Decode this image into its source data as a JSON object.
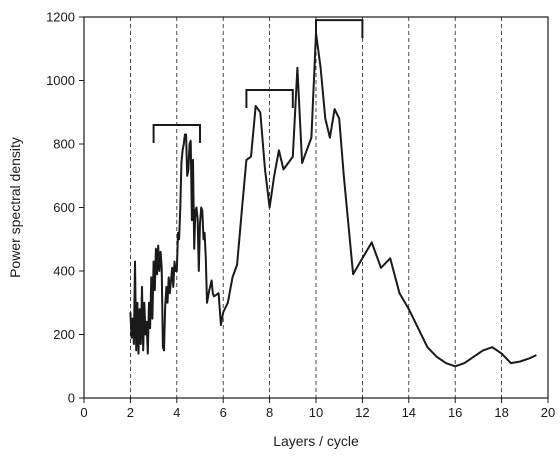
{
  "chart_data": {
    "type": "line",
    "title": "",
    "xlabel": "Layers / cycle",
    "ylabel": "Power spectral density",
    "xlim": [
      0,
      20
    ],
    "ylim": [
      0,
      1200
    ],
    "xticks": [
      0,
      2,
      4,
      6,
      8,
      10,
      12,
      14,
      16,
      18,
      20
    ],
    "yticks": [
      0,
      200,
      400,
      600,
      800,
      1000,
      1200
    ],
    "grid": "vertical dashed lines at even x ticks 2-18",
    "legend": "none",
    "line_color": "#1a1a1a",
    "series": [
      {
        "points": [
          [
            2.0,
            270
          ],
          [
            2.05,
            190
          ],
          [
            2.1,
            250
          ],
          [
            2.15,
            170
          ],
          [
            2.2,
            430
          ],
          [
            2.25,
            150
          ],
          [
            2.3,
            300
          ],
          [
            2.35,
            140
          ],
          [
            2.4,
            280
          ],
          [
            2.45,
            170
          ],
          [
            2.5,
            350
          ],
          [
            2.55,
            150
          ],
          [
            2.6,
            300
          ],
          [
            2.65,
            200
          ],
          [
            2.7,
            240
          ],
          [
            2.75,
            140
          ],
          [
            2.8,
            300
          ],
          [
            2.85,
            220
          ],
          [
            2.9,
            380
          ],
          [
            2.95,
            250
          ],
          [
            3.0,
            430
          ],
          [
            3.05,
            340
          ],
          [
            3.1,
            470
          ],
          [
            3.15,
            390
          ],
          [
            3.2,
            480
          ],
          [
            3.25,
            400
          ],
          [
            3.3,
            460
          ],
          [
            3.35,
            410
          ],
          [
            3.4,
            160
          ],
          [
            3.45,
            150
          ],
          [
            3.5,
            290
          ],
          [
            3.55,
            350
          ],
          [
            3.6,
            300
          ],
          [
            3.65,
            380
          ],
          [
            3.7,
            330
          ],
          [
            3.8,
            410
          ],
          [
            3.85,
            350
          ],
          [
            3.9,
            430
          ],
          [
            3.95,
            400
          ],
          [
            4.0,
            400
          ],
          [
            4.05,
            520
          ],
          [
            4.1,
            500
          ],
          [
            4.15,
            600
          ],
          [
            4.2,
            740
          ],
          [
            4.25,
            780
          ],
          [
            4.3,
            800
          ],
          [
            4.35,
            830
          ],
          [
            4.4,
            830
          ],
          [
            4.45,
            700
          ],
          [
            4.5,
            720
          ],
          [
            4.55,
            800
          ],
          [
            4.6,
            810
          ],
          [
            4.65,
            560
          ],
          [
            4.7,
            750
          ],
          [
            4.75,
            470
          ],
          [
            4.8,
            590
          ],
          [
            4.85,
            600
          ],
          [
            4.9,
            560
          ],
          [
            4.95,
            400
          ],
          [
            5.0,
            550
          ],
          [
            5.05,
            600
          ],
          [
            5.1,
            590
          ],
          [
            5.15,
            500
          ],
          [
            5.2,
            520
          ],
          [
            5.25,
            440
          ],
          [
            5.3,
            300
          ],
          [
            5.4,
            340
          ],
          [
            5.5,
            370
          ],
          [
            5.55,
            330
          ],
          [
            5.6,
            320
          ],
          [
            5.8,
            330
          ],
          [
            5.9,
            230
          ],
          [
            6.0,
            270
          ],
          [
            6.2,
            300
          ],
          [
            6.4,
            380
          ],
          [
            6.6,
            420
          ],
          [
            6.8,
            590
          ],
          [
            7.0,
            750
          ],
          [
            7.2,
            760
          ],
          [
            7.4,
            920
          ],
          [
            7.6,
            900
          ],
          [
            7.8,
            720
          ],
          [
            8.0,
            600
          ],
          [
            8.2,
            700
          ],
          [
            8.4,
            780
          ],
          [
            8.6,
            720
          ],
          [
            8.8,
            740
          ],
          [
            9.0,
            760
          ],
          [
            9.2,
            1040
          ],
          [
            9.4,
            740
          ],
          [
            9.6,
            780
          ],
          [
            9.8,
            820
          ],
          [
            10.0,
            1150
          ],
          [
            10.2,
            1040
          ],
          [
            10.4,
            880
          ],
          [
            10.6,
            820
          ],
          [
            10.8,
            910
          ],
          [
            11.0,
            880
          ],
          [
            11.2,
            700
          ],
          [
            11.6,
            390
          ],
          [
            12.0,
            440
          ],
          [
            12.4,
            490
          ],
          [
            12.8,
            410
          ],
          [
            13.2,
            440
          ],
          [
            13.6,
            330
          ],
          [
            14.0,
            280
          ],
          [
            14.4,
            220
          ],
          [
            14.8,
            160
          ],
          [
            15.2,
            130
          ],
          [
            15.6,
            110
          ],
          [
            16.0,
            100
          ],
          [
            16.4,
            110
          ],
          [
            16.8,
            130
          ],
          [
            17.2,
            150
          ],
          [
            17.6,
            160
          ],
          [
            18.0,
            140
          ],
          [
            18.4,
            110
          ],
          [
            18.8,
            115
          ],
          [
            19.2,
            125
          ],
          [
            19.5,
            135
          ]
        ]
      }
    ],
    "annotations": [
      {
        "type": "bracket",
        "x_start": 3,
        "x_end": 5,
        "y": 860
      },
      {
        "type": "bracket",
        "x_start": 7,
        "x_end": 9,
        "y": 970
      },
      {
        "type": "bracket",
        "x_start": 10,
        "x_end": 12,
        "y": 1190
      }
    ]
  }
}
